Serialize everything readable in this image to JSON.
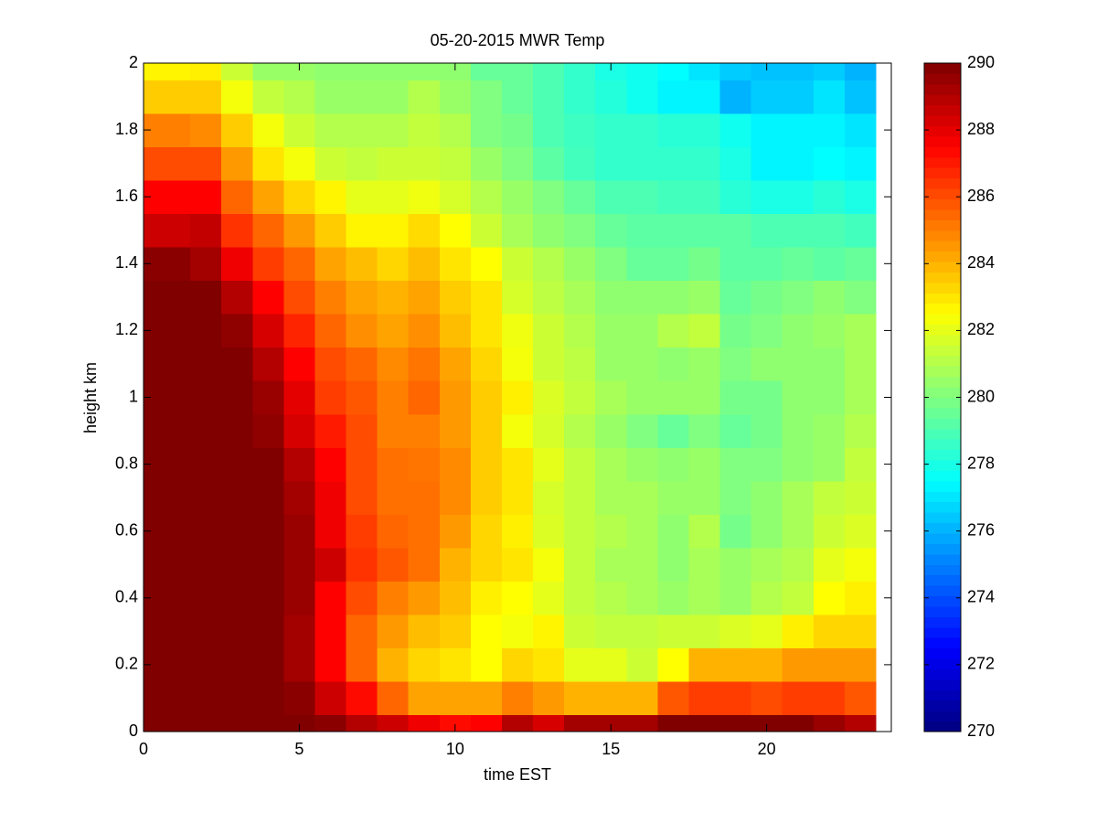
{
  "chart_data": {
    "type": "heatmap",
    "title": "05-20-2015 MWR Temp",
    "x_label": "time EST",
    "y_label": "height km",
    "xlim": [
      0,
      24
    ],
    "xticks": [
      0,
      5,
      10,
      15,
      20
    ],
    "ylim": [
      0,
      2
    ],
    "yticks": [
      0,
      0.2,
      0.4,
      0.6,
      0.8,
      1,
      1.2,
      1.4,
      1.6,
      1.8,
      2
    ],
    "zlim": [
      270,
      290
    ],
    "zticks": [
      270,
      272,
      274,
      276,
      278,
      280,
      282,
      284,
      286,
      288,
      290
    ],
    "colormap": "jet",
    "xbins": [
      0,
      1.5,
      2.5,
      3.5,
      4.5,
      5.5,
      6.5,
      7.5,
      8.5,
      9.5,
      10.5,
      11.5,
      12.5,
      13.5,
      14.5,
      15.5,
      16.5,
      17.5,
      18.5,
      19.5,
      20.5,
      21.5,
      22.5,
      23.5
    ],
    "ybins": [
      0,
      0.05,
      0.15,
      0.25,
      0.35,
      0.45,
      0.55,
      0.65,
      0.75,
      0.85,
      0.95,
      1.05,
      1.15,
      1.25,
      1.35,
      1.45,
      1.55,
      1.65,
      1.75,
      1.85,
      1.95,
      2
    ],
    "z": [
      [
        290,
        290,
        290,
        290,
        290,
        289.8,
        289,
        288.5,
        287.8,
        287.3,
        287.5,
        289,
        288.3,
        289.3,
        289.3,
        289.3,
        290,
        290,
        290,
        290,
        290,
        289.5,
        289
      ],
      [
        290,
        290,
        290,
        290,
        289.8,
        288.5,
        287.3,
        285.5,
        284.3,
        284.3,
        284.3,
        285,
        284.5,
        284,
        284,
        284,
        285.8,
        286.3,
        286.3,
        286,
        286.3,
        286.3,
        285.8
      ],
      [
        290,
        290,
        290,
        290,
        289.3,
        287.5,
        285.5,
        284,
        283.3,
        283,
        282.5,
        283.3,
        283,
        282,
        282,
        281.5,
        282.5,
        284,
        284,
        284,
        284.5,
        284.5,
        284.5
      ],
      [
        290,
        290,
        290,
        290,
        289.3,
        287.5,
        285.5,
        284.5,
        283.8,
        283.5,
        282.5,
        282.3,
        282.7,
        281.5,
        281.3,
        281.3,
        281.5,
        281.5,
        281.8,
        282,
        282.8,
        283.3,
        283.3
      ],
      [
        290,
        290,
        290,
        290,
        289.5,
        287.5,
        286,
        285,
        284.5,
        283.8,
        282.8,
        282.5,
        282,
        281.3,
        281,
        280.8,
        280.5,
        280.8,
        280.5,
        281,
        281.3,
        282.5,
        282.8
      ],
      [
        290,
        290,
        290,
        290,
        289.5,
        288.5,
        286.5,
        285.8,
        285.3,
        284,
        283.3,
        283,
        282.3,
        281.3,
        280.8,
        280.8,
        280.3,
        280.8,
        280.5,
        280.8,
        281,
        282,
        282.3
      ],
      [
        290,
        290,
        290,
        290,
        289.5,
        287.8,
        286.3,
        285.5,
        285.3,
        284.5,
        283.3,
        282.8,
        281.8,
        281.3,
        281,
        280.8,
        280.3,
        281,
        279.8,
        280.3,
        280.8,
        281.5,
        281.8
      ],
      [
        290,
        290,
        290,
        290,
        289.3,
        287.8,
        286,
        285.3,
        285.3,
        284.8,
        283.5,
        283,
        281.7,
        281.3,
        280.8,
        280.8,
        280.5,
        280.5,
        280,
        280.3,
        280.8,
        281.3,
        281.5
      ],
      [
        290,
        290,
        290,
        290,
        289,
        287.5,
        286,
        285.3,
        285.2,
        284.8,
        283.5,
        283,
        282,
        281.3,
        280.8,
        280.5,
        280.3,
        280.5,
        280,
        280,
        280.3,
        280.5,
        281.3
      ],
      [
        290,
        290,
        290,
        289.7,
        288.3,
        287,
        286,
        285,
        285,
        284.5,
        283.5,
        282.3,
        281.7,
        281,
        280.5,
        280,
        279.5,
        280,
        279.5,
        279.8,
        280.3,
        280.5,
        281
      ],
      [
        290,
        290,
        290,
        289.5,
        288,
        286.3,
        285.8,
        285,
        285.5,
        284.5,
        283.5,
        282.8,
        281.8,
        281.3,
        280.8,
        280.5,
        280.5,
        280.5,
        279.8,
        279.8,
        280.3,
        280.3,
        280.8
      ],
      [
        290,
        290,
        290,
        289,
        287.5,
        286,
        285.5,
        284.8,
        285.2,
        284.3,
        283.3,
        282.3,
        281.5,
        281.2,
        280.5,
        280.5,
        280.3,
        280.5,
        280,
        280.3,
        280.3,
        280.3,
        280.8
      ],
      [
        290,
        290,
        289.7,
        288.3,
        286.8,
        285.5,
        284.7,
        284.3,
        284.7,
        283.8,
        283,
        282.2,
        281.5,
        281,
        280.5,
        280.5,
        281,
        281.3,
        279.8,
        280,
        280.3,
        280.5,
        280.8
      ],
      [
        290,
        290,
        289,
        287.5,
        286,
        285,
        284.3,
        284,
        284.3,
        283.5,
        283,
        281.7,
        281.2,
        280.8,
        280.3,
        280.3,
        280.3,
        280.5,
        279.5,
        279.8,
        280,
        280.3,
        280
      ],
      [
        289.8,
        289.3,
        287.8,
        286.3,
        285.5,
        284.3,
        283.8,
        283.3,
        283.8,
        283,
        282.5,
        281.5,
        281,
        280.5,
        280,
        279.5,
        279.5,
        279.8,
        279.3,
        279.3,
        279.5,
        279.3,
        279.5
      ],
      [
        288.5,
        288.7,
        286.5,
        285.5,
        284.5,
        283.5,
        282.7,
        282.7,
        283.2,
        282.5,
        281.5,
        280.8,
        280.3,
        280,
        279.5,
        279.3,
        279.3,
        279.3,
        279.3,
        279,
        279,
        279,
        278.8
      ],
      [
        287.5,
        287.5,
        285.5,
        284.3,
        283.3,
        282.7,
        282,
        282,
        282.2,
        281.7,
        281,
        280.5,
        280,
        279.5,
        279,
        279,
        278.8,
        278.8,
        278.3,
        278,
        278,
        278.3,
        278
      ],
      [
        286,
        286,
        284.5,
        283,
        282.3,
        281.5,
        281.3,
        281.5,
        281.5,
        281.3,
        280.5,
        280,
        279.3,
        278.8,
        278.5,
        278.5,
        278.5,
        278.5,
        278,
        277.3,
        277.3,
        277.5,
        277.3
      ],
      [
        285,
        284.8,
        283.5,
        282.3,
        281.5,
        281,
        281,
        281,
        281.3,
        281,
        280,
        279.8,
        279,
        278.7,
        278.5,
        278.5,
        278.3,
        278.3,
        277.8,
        277.3,
        277.3,
        277.3,
        277
      ],
      [
        283.5,
        283.5,
        282.3,
        281.3,
        281,
        280.5,
        280.5,
        280.5,
        281,
        280.5,
        280,
        279.5,
        279,
        278.5,
        278.2,
        277.8,
        277.3,
        277.3,
        276,
        276.5,
        276.5,
        277,
        276.3
      ],
      [
        282.7,
        282.8,
        281.5,
        280.5,
        280.5,
        280.3,
        280.3,
        280.3,
        280.3,
        280.3,
        279.5,
        279.5,
        279,
        278.5,
        278,
        277.8,
        277.5,
        277,
        276.5,
        276.3,
        276.3,
        276.5,
        276
      ]
    ]
  }
}
